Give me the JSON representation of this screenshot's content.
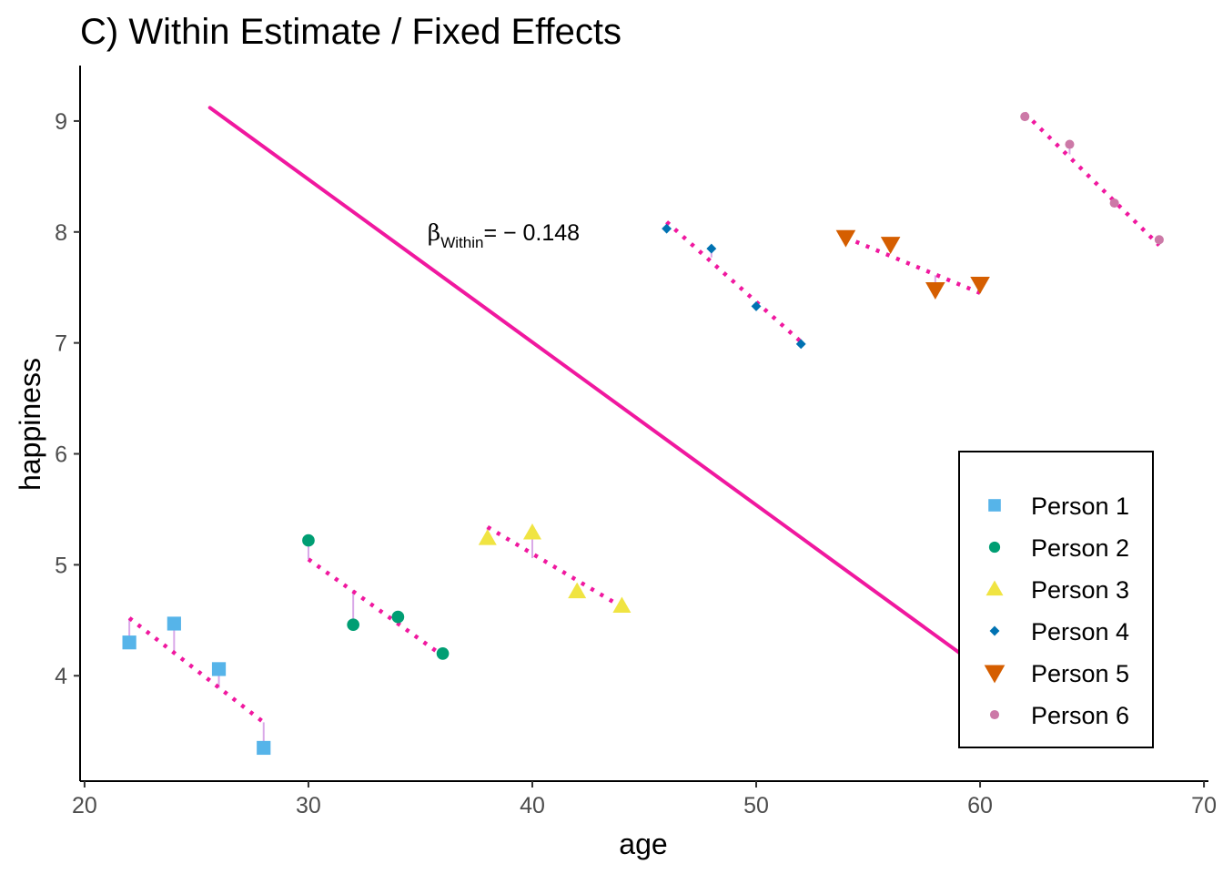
{
  "chart_data": {
    "type": "scatter",
    "title": "C) Within Estimate / Fixed Effects",
    "xlabel": "age",
    "ylabel": "happiness",
    "xlim": [
      19.8,
      70.2
    ],
    "ylim": [
      3.05,
      9.5
    ],
    "x_ticks": [
      20,
      30,
      40,
      50,
      60,
      70
    ],
    "y_ticks": [
      4,
      5,
      6,
      7,
      8,
      9
    ],
    "grid": false,
    "legend_position": "bottom-right",
    "series": [
      {
        "name": "Person 1",
        "color": "#56B4E9",
        "shape": "square",
        "x": [
          22,
          24,
          26,
          28
        ],
        "y": [
          4.3,
          4.47,
          4.06,
          3.35
        ],
        "fitted": [
          4.52,
          4.22,
          3.89,
          3.58
        ]
      },
      {
        "name": "Person 2",
        "color": "#009E73",
        "shape": "circle",
        "x": [
          30,
          32,
          34,
          36
        ],
        "y": [
          5.22,
          4.46,
          4.53,
          4.2
        ],
        "fitted": [
          5.05,
          4.77,
          4.48,
          4.18
        ]
      },
      {
        "name": "Person 3",
        "color": "#F0E442",
        "shape": "triangle-up",
        "x": [
          38,
          40,
          42,
          44
        ],
        "y": [
          5.24,
          5.29,
          4.76,
          4.63
        ],
        "fitted": [
          5.34,
          5.06,
          4.76,
          4.62
        ]
      },
      {
        "name": "Person 4",
        "color": "#0072B2",
        "shape": "diamond",
        "x": [
          46,
          48,
          50,
          52
        ],
        "y": [
          8.03,
          7.85,
          7.33,
          6.99
        ],
        "fitted": [
          8.09,
          7.77,
          7.35,
          7.01
        ]
      },
      {
        "name": "Person 5",
        "color": "#D55E00",
        "shape": "triangle-down",
        "x": [
          54,
          56,
          58,
          60
        ],
        "y": [
          7.95,
          7.89,
          7.48,
          7.53
        ],
        "fitted": [
          7.95,
          7.82,
          7.61,
          7.45
        ]
      },
      {
        "name": "Person 6",
        "color": "#CC79A7",
        "shape": "circle",
        "x": [
          62,
          64,
          66,
          68
        ],
        "y": [
          9.04,
          8.79,
          8.26,
          7.93
        ],
        "fitted": [
          9.07,
          8.7,
          8.28,
          7.88
        ]
      }
    ],
    "overall_line": {
      "color": "#F0189F",
      "x": [
        25.6,
        59.6
      ],
      "y": [
        9.12,
        4.13
      ]
    },
    "annotation": {
      "symbol": "β",
      "subscript": "Within",
      "text": "= − 0.148",
      "x": 39.3,
      "y": 8.0
    }
  }
}
